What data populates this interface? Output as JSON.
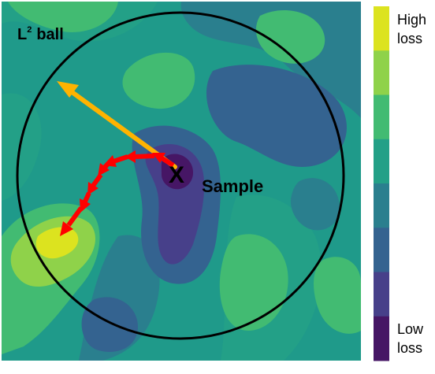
{
  "labels": {
    "ball": "L",
    "ball_sup": "2",
    "ball_word": "ball",
    "marker": "X",
    "sample": "Sample"
  },
  "colorbar": {
    "high_line1": "High",
    "high_line2": "loss",
    "low_line1": "Low",
    "low_line2": "loss",
    "levels": [
      "#dce31f",
      "#8fd24a",
      "#42bb72",
      "#23a087",
      "#2a7f8e",
      "#346390",
      "#47408a",
      "#461665"
    ]
  },
  "colors": {
    "arrow_single": "#ffb300",
    "arrow_iterative": "#ff0000",
    "circle": "#000000"
  }
}
